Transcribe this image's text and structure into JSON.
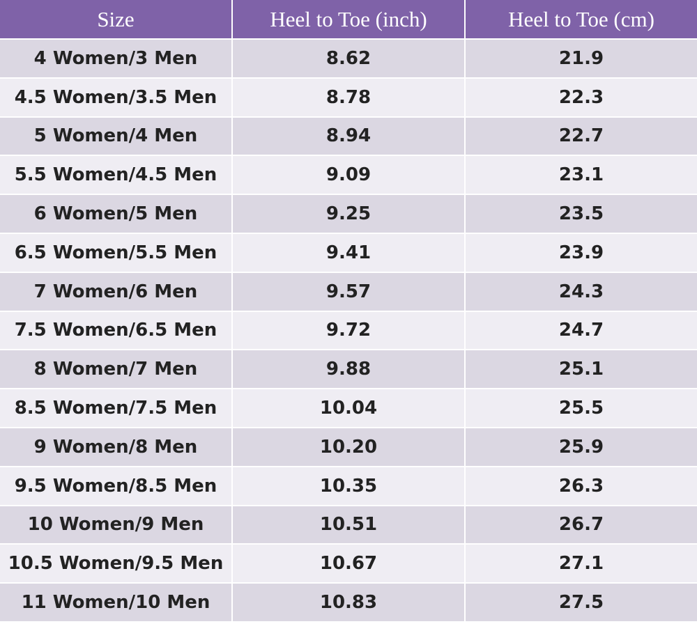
{
  "table": {
    "header": [
      "Size",
      "Heel to Toe (inch)",
      "Heel to Toe (cm)"
    ],
    "rows": [
      [
        "4 Women/3 Men",
        "8.62",
        "21.9"
      ],
      [
        "4.5 Women/3.5 Men",
        "8.78",
        "22.3"
      ],
      [
        "5 Women/4 Men",
        "8.94",
        "22.7"
      ],
      [
        "5.5 Women/4.5 Men",
        "9.09",
        "23.1"
      ],
      [
        "6 Women/5 Men",
        "9.25",
        "23.5"
      ],
      [
        "6.5 Women/5.5 Men",
        "9.41",
        "23.9"
      ],
      [
        "7 Women/6 Men",
        "9.57",
        "24.3"
      ],
      [
        "7.5 Women/6.5 Men",
        "9.72",
        "24.7"
      ],
      [
        "8 Women/7 Men",
        "9.88",
        "25.1"
      ],
      [
        "8.5 Women/7.5 Men",
        "10.04",
        "25.5"
      ],
      [
        "9 Women/8 Men",
        "10.20",
        "25.9"
      ],
      [
        "9.5 Women/8.5 Men",
        "10.35",
        "26.3"
      ],
      [
        "10 Women/9 Men",
        "10.51",
        "26.7"
      ],
      [
        "10.5 Women/9.5 Men",
        "10.67",
        "27.1"
      ],
      [
        "11 Women/10 Men",
        "10.83",
        "27.5"
      ]
    ]
  }
}
